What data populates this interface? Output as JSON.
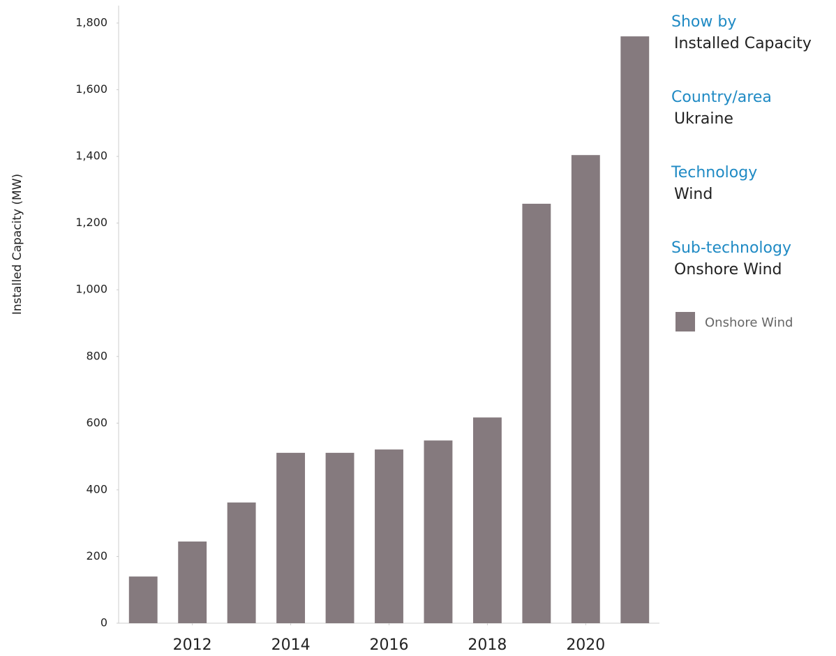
{
  "chart_data": {
    "type": "bar",
    "y_label": "Installed Capacity (MW)",
    "x": [
      2011,
      2012,
      2013,
      2014,
      2015,
      2016,
      2017,
      2018,
      2019,
      2020,
      2021
    ],
    "series": [
      {
        "name": "Onshore Wind",
        "color": "#857a7e",
        "values": [
          140,
          245,
          362,
          511,
          511,
          521,
          548,
          617,
          1258,
          1404,
          1760
        ]
      }
    ],
    "xlim": [
      2010.5,
      2021.5
    ],
    "xticks": [
      2012,
      2014,
      2016,
      2018,
      2020
    ],
    "ylim": [
      0,
      1800
    ],
    "yticks": [
      0,
      {
        "value": 200,
        "label": "200"
      },
      400,
      600,
      800,
      {
        "value": 1000,
        "label": "1,000"
      },
      {
        "value": 1200,
        "label": "1,200"
      },
      {
        "value": 1400,
        "label": "1,400"
      },
      {
        "value": 1600,
        "label": "1,600"
      },
      {
        "value": 1800,
        "label": "1,800"
      }
    ],
    "grid": false
  },
  "filters": [
    {
      "label": "Show by",
      "value": "Installed Capacity"
    },
    {
      "label": "Country/area",
      "value": "Ukraine"
    },
    {
      "label": "Technology",
      "value": "Wind"
    },
    {
      "label": "Sub-technology",
      "value": "Onshore Wind"
    }
  ]
}
